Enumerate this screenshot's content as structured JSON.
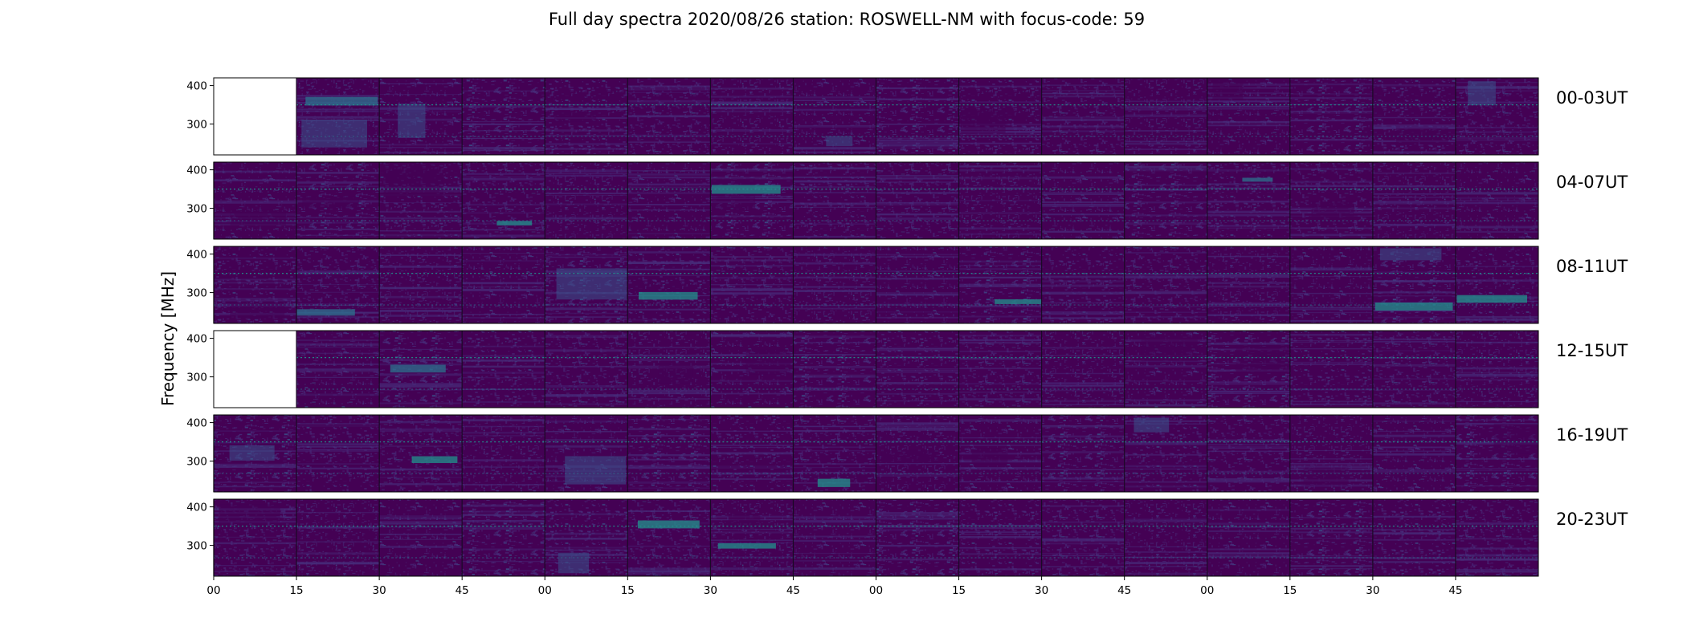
{
  "chart_data": {
    "type": "heatmap",
    "title": "Full day spectra 2020/08/26 station: ROSWELL-NM with focus-code: 59",
    "ylabel": "Frequency [MHz]",
    "xlabel": "",
    "y_ticks": [
      "300",
      "400"
    ],
    "x_ticks": [
      "00",
      "15",
      "30",
      "45",
      "00",
      "15",
      "30",
      "45",
      "00",
      "15",
      "30",
      "45",
      "00",
      "15",
      "30",
      "45"
    ],
    "rows": [
      {
        "label": "00-03UT",
        "missing_panels": [
          0
        ]
      },
      {
        "label": "04-07UT",
        "missing_panels": []
      },
      {
        "label": "08-11UT",
        "missing_panels": []
      },
      {
        "label": "12-15UT",
        "missing_panels": [
          0
        ]
      },
      {
        "label": "16-19UT",
        "missing_panels": []
      },
      {
        "label": "20-23UT",
        "missing_panels": []
      }
    ],
    "panels_per_row": 16,
    "panel_minutes": 15,
    "ylim": [
      220,
      420
    ],
    "persistent_lines_mhz": [
      350,
      268
    ],
    "colormap": [
      "#440154",
      "#472d7b",
      "#3b528b",
      "#2c728e",
      "#21918c",
      "#28ae80"
    ],
    "missing_color": "#ffffff"
  }
}
